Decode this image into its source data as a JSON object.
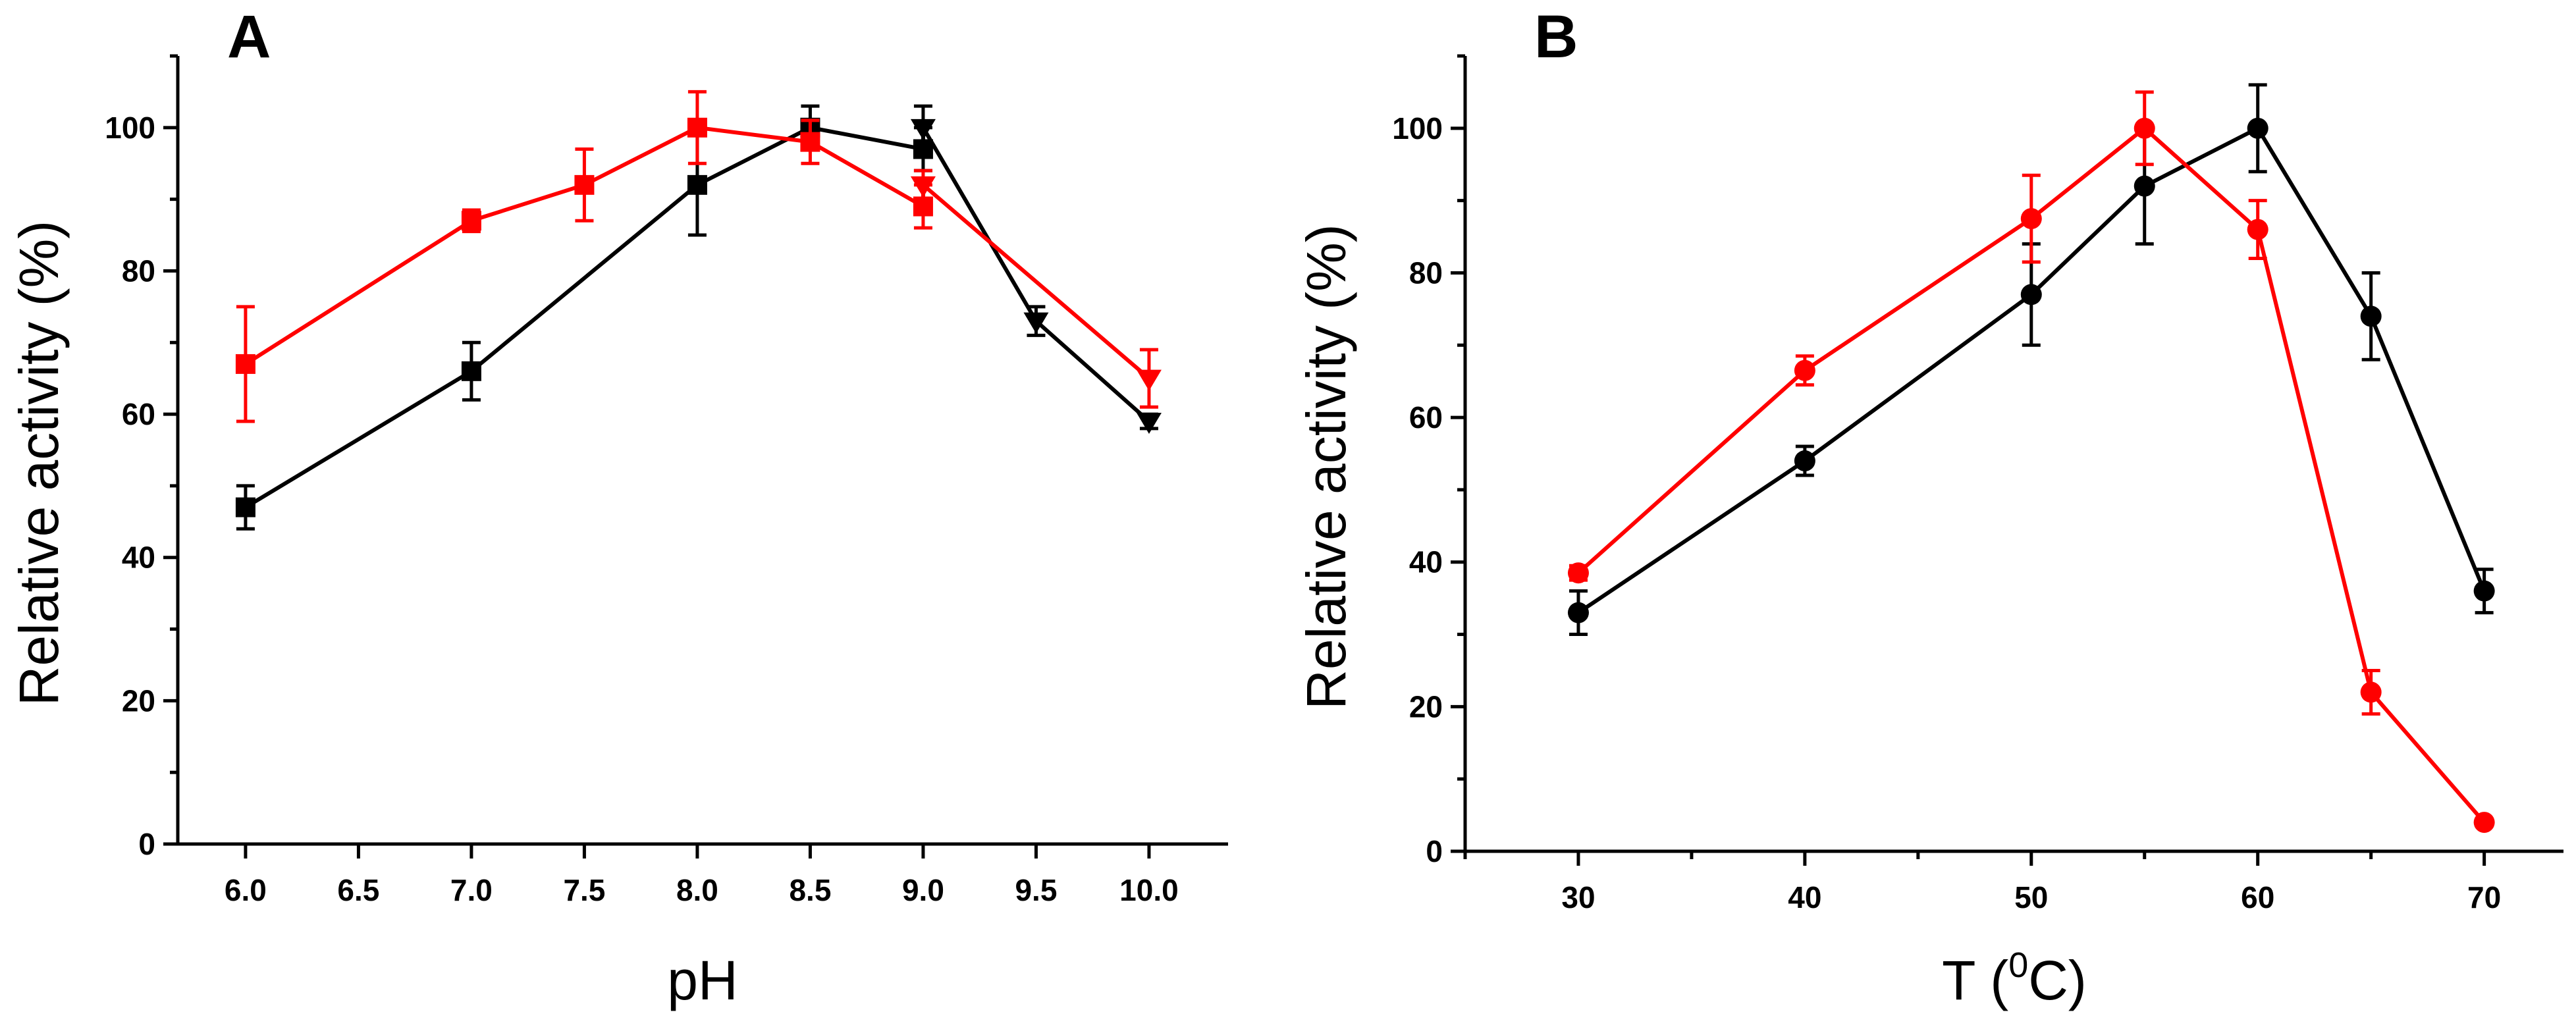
{
  "chart_data": [
    {
      "type": "line",
      "panel": "A",
      "title": "",
      "xlabel": "pH",
      "ylabel": "Relative activity (%)",
      "xlim": [
        5.7,
        10.35
      ],
      "ylim": [
        0,
        110
      ],
      "xticks": [
        6.0,
        6.5,
        7.0,
        7.5,
        8.0,
        8.5,
        9.0,
        9.5,
        10.0
      ],
      "xtick_labels": [
        "6.0",
        "6.5",
        "7.0",
        "7.5",
        "8.0",
        "8.5",
        "9.0",
        "9.5",
        "10.0"
      ],
      "yticks": [
        0,
        20,
        40,
        60,
        80,
        100
      ],
      "ytick_labels": [
        "0",
        "20",
        "40",
        "60",
        "80",
        "100"
      ],
      "grid": false,
      "series": [
        {
          "name": "black",
          "color": "#000000",
          "points": [
            {
              "x": 6.0,
              "y": 47,
              "err": 3,
              "marker": "square"
            },
            {
              "x": 7.0,
              "y": 66,
              "err": 4,
              "marker": "square"
            },
            {
              "x": 8.0,
              "y": 92,
              "err": 7,
              "marker": "square"
            },
            {
              "x": 8.5,
              "y": 100,
              "err": 3,
              "marker": "square"
            },
            {
              "x": 9.0,
              "y": 97,
              "err": 3,
              "marker": "square"
            },
            {
              "x": 9.0,
              "y": 100,
              "err": 3,
              "marker": "triangle-down"
            },
            {
              "x": 9.5,
              "y": 73,
              "err": 2,
              "marker": "triangle-down"
            },
            {
              "x": 10.0,
              "y": 59,
              "err": 1,
              "marker": "triangle-down"
            }
          ]
        },
        {
          "name": "red",
          "color": "#ff0000",
          "points": [
            {
              "x": 6.0,
              "y": 67,
              "err": 8,
              "marker": "square"
            },
            {
              "x": 7.0,
              "y": 87,
              "err": 1.5,
              "marker": "square"
            },
            {
              "x": 7.5,
              "y": 92,
              "err": 5,
              "marker": "square"
            },
            {
              "x": 8.0,
              "y": 100,
              "err": 5,
              "marker": "square"
            },
            {
              "x": 8.5,
              "y": 98,
              "err": 3,
              "marker": "square"
            },
            {
              "x": 9.0,
              "y": 89,
              "err": 3,
              "marker": "square"
            },
            {
              "x": 9.0,
              "y": 92,
              "err": 2,
              "marker": "triangle-down"
            },
            {
              "x": 10.0,
              "y": 65,
              "err": 4,
              "marker": "triangle-down"
            }
          ]
        }
      ]
    },
    {
      "type": "line",
      "panel": "B",
      "title": "",
      "xlabel": "T (⁰C)",
      "xlabel_main": "T (",
      "xlabel_sup": "0",
      "xlabel_end": "C)",
      "ylabel": "Relative activity (%)",
      "xlim": [
        25,
        73.5
      ],
      "ylim": [
        0,
        110
      ],
      "xticks": [
        30,
        40,
        50,
        60,
        70
      ],
      "xtick_labels": [
        "30",
        "40",
        "50",
        "60",
        "70"
      ],
      "yticks": [
        0,
        20,
        40,
        60,
        80,
        100
      ],
      "ytick_labels": [
        "0",
        "20",
        "40",
        "60",
        "80",
        "100"
      ],
      "grid": false,
      "series": [
        {
          "name": "black",
          "color": "#000000",
          "points": [
            {
              "x": 30,
              "y": 33,
              "err": 3,
              "marker": "circle"
            },
            {
              "x": 40,
              "y": 54,
              "err": 2,
              "marker": "circle"
            },
            {
              "x": 50,
              "y": 77,
              "err": 7,
              "marker": "circle"
            },
            {
              "x": 55,
              "y": 92,
              "err": 8,
              "marker": "circle"
            },
            {
              "x": 60,
              "y": 100,
              "err": 6,
              "marker": "circle"
            },
            {
              "x": 65,
              "y": 74,
              "err": 6,
              "marker": "circle"
            },
            {
              "x": 70,
              "y": 36,
              "err": 3,
              "marker": "circle"
            }
          ]
        },
        {
          "name": "red",
          "color": "#ff0000",
          "points": [
            {
              "x": 30,
              "y": 38.5,
              "err": 1,
              "marker": "circle"
            },
            {
              "x": 40,
              "y": 66.5,
              "err": 2,
              "marker": "circle"
            },
            {
              "x": 50,
              "y": 87.5,
              "err": 6,
              "marker": "circle"
            },
            {
              "x": 55,
              "y": 100,
              "err": 5,
              "marker": "circle"
            },
            {
              "x": 60,
              "y": 86,
              "err": 4,
              "marker": "circle"
            },
            {
              "x": 65,
              "y": 22,
              "err": 3,
              "marker": "circle"
            },
            {
              "x": 70,
              "y": 4,
              "err": 0.5,
              "marker": "circle"
            }
          ]
        }
      ]
    }
  ]
}
